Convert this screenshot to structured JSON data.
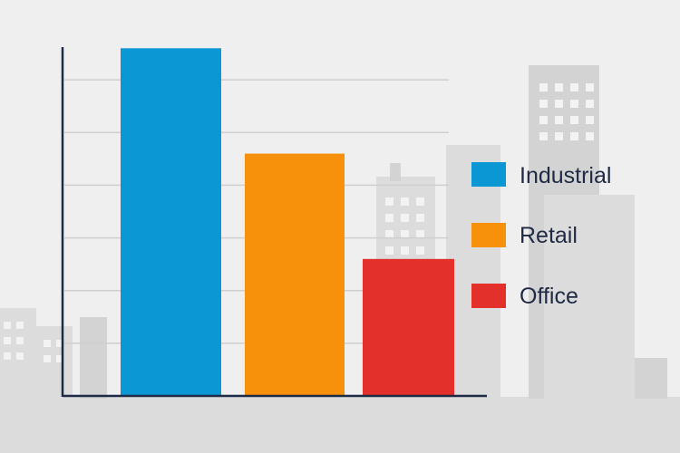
{
  "chart_data": {
    "type": "bar",
    "categories": [
      "Industrial",
      "Retail",
      "Office"
    ],
    "values": [
      6.6,
      4.6,
      2.6
    ],
    "colors": [
      "#0b97d4",
      "#f7900a",
      "#e3302a"
    ],
    "ylim": [
      0,
      7.0
    ],
    "grid": true,
    "legend_position": "right",
    "title": "",
    "xlabel": "",
    "ylabel": ""
  },
  "legend": {
    "items": [
      {
        "label": "Industrial",
        "color": "#0b97d4"
      },
      {
        "label": "Retail",
        "color": "#f7900a"
      },
      {
        "label": "Office",
        "color": "#e3302a"
      }
    ]
  },
  "colors": {
    "background": "#efefef",
    "axis": "#1f2a44",
    "grid": "#cfcfcf",
    "skyline": "#dcdcdc"
  }
}
